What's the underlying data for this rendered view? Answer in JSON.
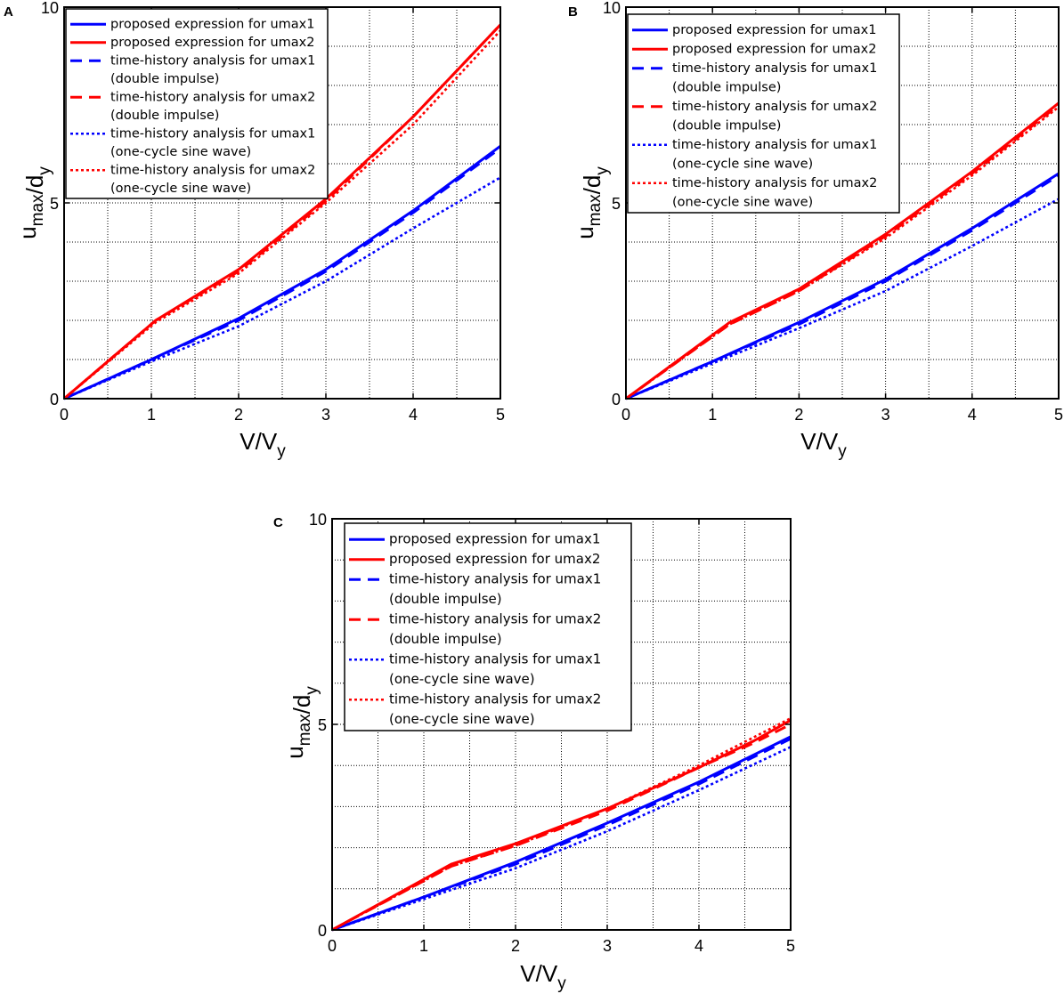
{
  "chart_data": [
    {
      "type": "line",
      "panel": "A",
      "xlabel": "V/V_y",
      "ylabel": "u_max/d_y",
      "xlim": [
        0,
        5
      ],
      "ylim": [
        0,
        10
      ],
      "x_ticks": [
        "0",
        "1",
        "2",
        "3",
        "4",
        "5"
      ],
      "y_ticks": [
        "0",
        "5",
        "10"
      ],
      "grid": true,
      "legend_position": "top-left",
      "series": [
        {
          "name": "proposed expression for umax1",
          "color": "#0000ff",
          "style": "solid",
          "x": [
            0,
            1,
            2,
            3,
            4,
            5
          ],
          "y": [
            0,
            1.0,
            2.05,
            3.3,
            4.8,
            6.45
          ]
        },
        {
          "name": "proposed expression for umax2",
          "color": "#ff0000",
          "style": "solid",
          "x": [
            0,
            1.05,
            2,
            3,
            4,
            5
          ],
          "y": [
            0,
            2.0,
            3.3,
            5.1,
            7.2,
            9.55
          ]
        },
        {
          "name": "time-history analysis for umax1\n(double impulse)",
          "color": "#0000ff",
          "style": "dashed",
          "x": [
            0,
            1,
            2,
            3,
            4,
            5
          ],
          "y": [
            0,
            1.0,
            2.0,
            3.25,
            4.75,
            6.4
          ]
        },
        {
          "name": "time-history analysis for umax2\n(double impulse)",
          "color": "#ff0000",
          "style": "dashed",
          "x": [
            0,
            1.05,
            2,
            3,
            4,
            5
          ],
          "y": [
            0,
            2.0,
            3.25,
            5.05,
            7.2,
            9.55
          ]
        },
        {
          "name": "time-history analysis for umax1\n(one-cycle sine wave)",
          "color": "#0000ff",
          "style": "dotted",
          "x": [
            0,
            1,
            2,
            3,
            4,
            5
          ],
          "y": [
            0,
            0.95,
            1.85,
            3.0,
            4.35,
            5.65
          ]
        },
        {
          "name": "time-history analysis for umax2\n(one-cycle sine wave)",
          "color": "#ff0000",
          "style": "dotted",
          "x": [
            0,
            1.05,
            2,
            3,
            4,
            5
          ],
          "y": [
            0,
            1.95,
            3.2,
            5.0,
            7.0,
            9.4
          ]
        }
      ]
    },
    {
      "type": "line",
      "panel": "B",
      "xlabel": "V/V_y",
      "ylabel": "u_max/d_y",
      "xlim": [
        0,
        5
      ],
      "ylim": [
        0,
        10
      ],
      "x_ticks": [
        "0",
        "1",
        "2",
        "3",
        "4",
        "5"
      ],
      "y_ticks": [
        "0",
        "5",
        "10"
      ],
      "grid": true,
      "legend_position": "top-left",
      "series": [
        {
          "name": "proposed expression for umax1",
          "color": "#0000ff",
          "style": "solid",
          "x": [
            0,
            1,
            2,
            3,
            4,
            5
          ],
          "y": [
            0,
            0.95,
            1.95,
            3.05,
            4.35,
            5.75
          ]
        },
        {
          "name": "proposed expression for umax2",
          "color": "#ff0000",
          "style": "solid",
          "x": [
            0,
            1.2,
            2,
            3,
            4,
            5
          ],
          "y": [
            0,
            1.95,
            2.8,
            4.2,
            5.8,
            7.55
          ]
        },
        {
          "name": "time-history analysis for umax1\n(double impulse)",
          "color": "#0000ff",
          "style": "dashed",
          "x": [
            0,
            1,
            2,
            3,
            4,
            5
          ],
          "y": [
            0,
            0.95,
            1.9,
            3.0,
            4.3,
            5.7
          ]
        },
        {
          "name": "time-history analysis for umax2\n(double impulse)",
          "color": "#ff0000",
          "style": "dashed",
          "x": [
            0,
            1.2,
            2,
            3,
            4,
            5
          ],
          "y": [
            0,
            1.9,
            2.75,
            4.15,
            5.75,
            7.5
          ]
        },
        {
          "name": "time-history analysis for umax1\n(one-cycle sine wave)",
          "color": "#0000ff",
          "style": "dotted",
          "x": [
            0,
            1,
            2,
            3,
            4,
            5
          ],
          "y": [
            0,
            0.9,
            1.8,
            2.75,
            3.9,
            5.1
          ]
        },
        {
          "name": "time-history analysis for umax2\n(one-cycle sine wave)",
          "color": "#ff0000",
          "style": "dotted",
          "x": [
            0,
            1.2,
            2,
            3,
            4,
            5
          ],
          "y": [
            0,
            1.9,
            2.75,
            4.1,
            5.7,
            7.45
          ]
        }
      ]
    },
    {
      "type": "line",
      "panel": "C",
      "xlabel": "V/V_y",
      "ylabel": "u_max/d_y",
      "xlim": [
        0,
        5
      ],
      "ylim": [
        0,
        10
      ],
      "x_ticks": [
        "0",
        "1",
        "2",
        "3",
        "4",
        "5"
      ],
      "y_ticks": [
        "0",
        "5",
        "10"
      ],
      "grid": true,
      "legend_position": "top-left",
      "series": [
        {
          "name": "proposed expression for umax1",
          "color": "#0000ff",
          "style": "solid",
          "x": [
            0,
            1,
            2,
            3,
            4,
            5
          ],
          "y": [
            0,
            0.8,
            1.65,
            2.6,
            3.6,
            4.7
          ]
        },
        {
          "name": "proposed expression for umax2",
          "color": "#ff0000",
          "style": "solid",
          "x": [
            0,
            1.3,
            2,
            3,
            4,
            4.6,
            5
          ],
          "y": [
            0,
            1.6,
            2.1,
            2.95,
            3.95,
            4.6,
            5.1
          ]
        },
        {
          "name": "time-history analysis for umax1\n(double impulse)",
          "color": "#0000ff",
          "style": "dashed",
          "x": [
            0,
            1,
            2,
            3,
            4,
            5
          ],
          "y": [
            0,
            0.8,
            1.6,
            2.55,
            3.55,
            4.65
          ]
        },
        {
          "name": "time-history analysis for umax2\n(double impulse)",
          "color": "#ff0000",
          "style": "dashed",
          "x": [
            0,
            1.3,
            2,
            3,
            4,
            4.6,
            5
          ],
          "y": [
            0,
            1.55,
            2.05,
            2.9,
            3.95,
            4.55,
            5.0
          ]
        },
        {
          "name": "time-history analysis for umax1\n(one-cycle sine wave)",
          "color": "#0000ff",
          "style": "dotted",
          "x": [
            0,
            1,
            2,
            3,
            4,
            5
          ],
          "y": [
            0,
            0.75,
            1.5,
            2.4,
            3.4,
            4.45
          ]
        },
        {
          "name": "time-history analysis for umax2\n(one-cycle sine wave)",
          "color": "#ff0000",
          "style": "dotted",
          "x": [
            0,
            1.3,
            2,
            3,
            4,
            5
          ],
          "y": [
            0,
            1.55,
            2.05,
            2.95,
            4.0,
            5.15
          ]
        }
      ]
    }
  ]
}
